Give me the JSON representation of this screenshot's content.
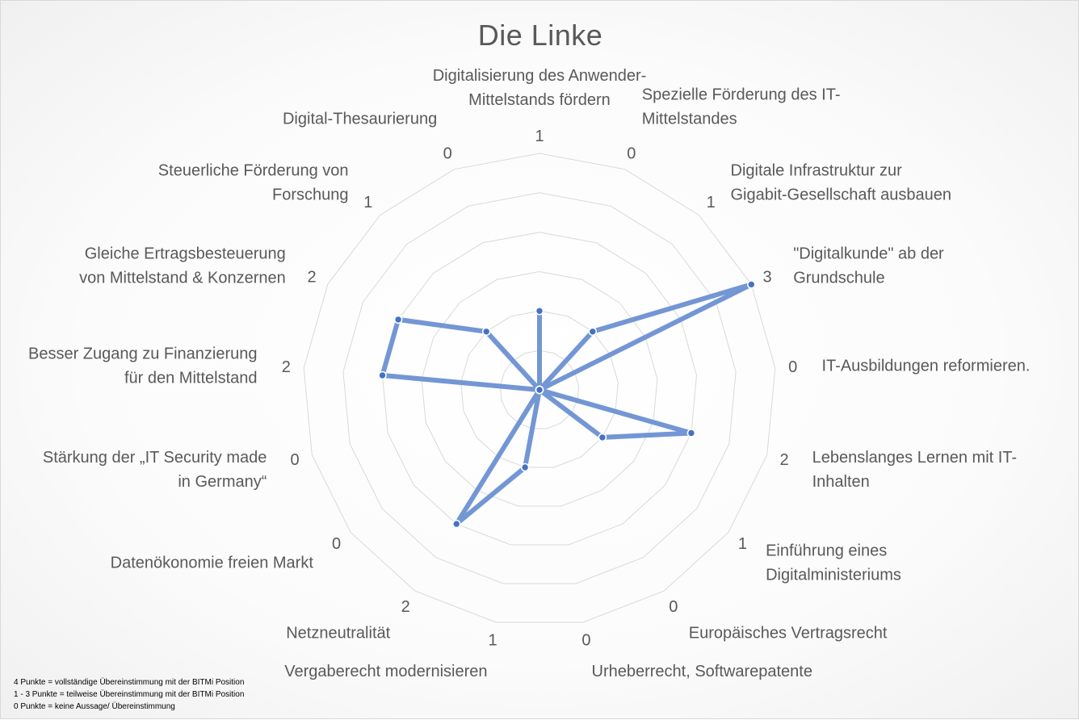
{
  "chart_data": {
    "type": "radar",
    "title": "Die Linke",
    "categories": [
      "Digitalisierung des Anwender-\nMittelstands fördern",
      "Spezielle Förderung des IT-\nMittelstandes",
      "Digitale Infrastruktur zur\nGigabit-Gesellschaft ausbauen",
      "\"Digitalkunde\" ab der\nGrundschule",
      "IT-Ausbildungen reformieren.",
      "Lebenslanges Lernen mit IT-\nInhalten",
      "Einführung eines\nDigitalministeriums",
      "Europäisches Vertragsrecht",
      "Urheberrecht, Softwarepatente",
      "Vergaberecht modernisieren",
      "Netzneutralität",
      "Datenökonomie freien Markt",
      "Stärkung der „IT Security made\nin Germany“",
      "Besser Zugang zu Finanzierung\nfür den Mittelstand",
      "Gleiche Ertragsbesteuerung\nvon Mittelstand & Konzernen",
      "Steuerliche Förderung von\nForschung",
      "Digital-Thesaurierung"
    ],
    "series": [
      {
        "values": [
          1,
          0,
          1,
          3,
          0,
          2,
          1,
          0,
          0,
          1,
          2,
          0,
          0,
          2,
          2,
          1,
          0
        ]
      }
    ],
    "rlim": [
      0,
      3
    ],
    "grid": true,
    "legend": "none",
    "colors": {
      "series": "#7396d4",
      "grid": "#d9d9d9",
      "text": "#595959"
    }
  },
  "notes": [
    "4 Punkte = vollständige Übereinstimmung mit der BITMi Position",
    "1 - 3 Punkte = teilweise Übereinstimmung mit der BITMi Position",
    "0 Punkte = keine Aussage/ Übereinstimmung"
  ]
}
